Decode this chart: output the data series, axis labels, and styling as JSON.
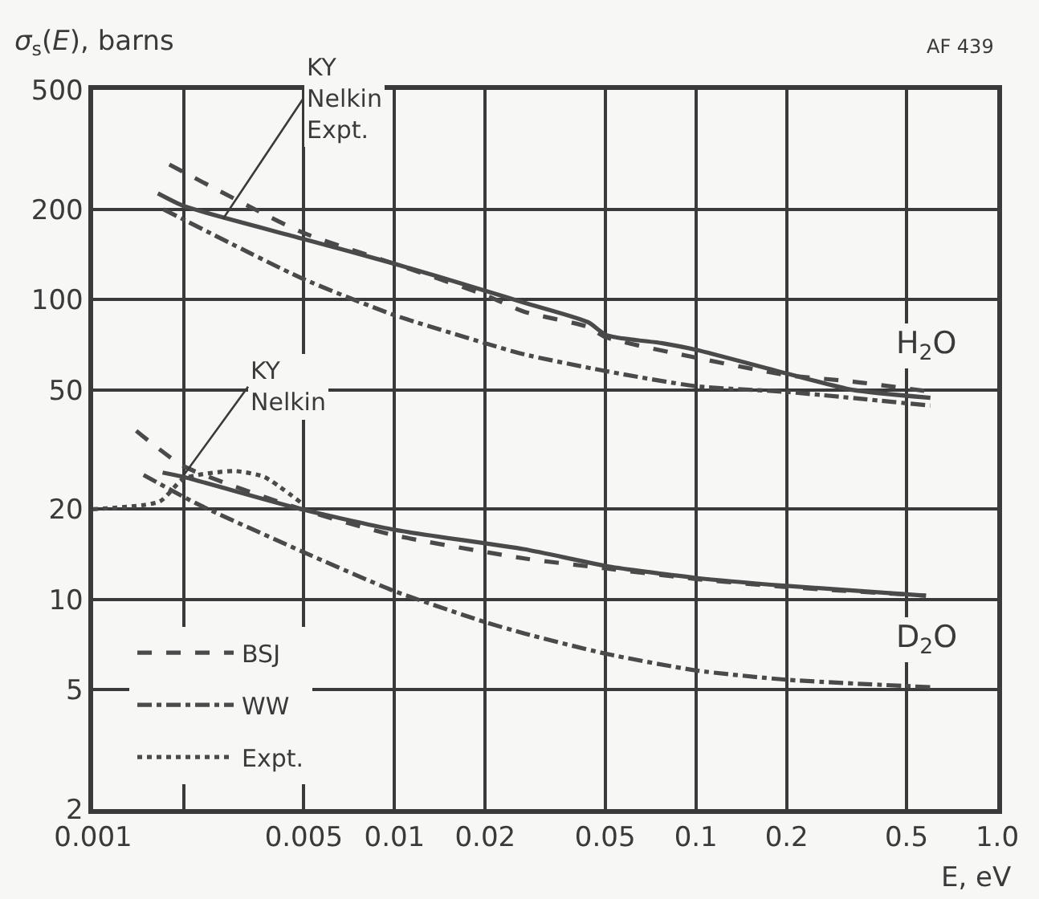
{
  "chart_data": {
    "type": "line",
    "xlabel": "E, eV",
    "ylabel": "σ$_{s}$(E), barns",
    "log": "xy",
    "grid": true,
    "legend": "bottom left",
    "marker": "none",
    "xlim": [
      0.001,
      1.0
    ],
    "ylim": [
      2,
      500
    ],
    "xticks": [
      0.001,
      {
        "value": 0.002,
        "label": null
      },
      0.005,
      0.01,
      0.02,
      0.05,
      0.1,
      0.2,
      0.5,
      {
        "value": 1.0,
        "label": "1.0"
      }
    ],
    "yticks": [
      2,
      5,
      10,
      20,
      50,
      100,
      200,
      500
    ],
    "series": [
      {
        "color": "#4a4a4a",
        "line_style": "solid",
        "x": [
          0.00164,
          0.002,
          0.0049,
          0.0099,
          0.02,
          0.027,
          0.0439,
          0.0506,
          0.0775,
          0.1,
          0.2,
          0.33,
          0.6
        ],
        "values": [
          226,
          205,
          160,
          132,
          107,
          97.5,
          84,
          76,
          71.5,
          68,
          56.7,
          50,
          47
        ]
      },
      {
        "name": "BSJ",
        "color": "#4a4a4a",
        "line_style": "dashed",
        "x": [
          0.00179,
          0.0049,
          0.0099,
          0.02,
          0.027,
          0.044,
          0.05,
          0.1,
          0.2,
          0.33,
          0.6
        ],
        "values": [
          282,
          168,
          132,
          103.5,
          91,
          81,
          75,
          64,
          56,
          53.3,
          49.3
        ]
      },
      {
        "name": "WW",
        "color": "#4a4a4a",
        "line_style": "dashdot",
        "x": [
          0.00171,
          0.0049,
          0.0099,
          0.02,
          0.027,
          0.049,
          0.1,
          0.2,
          0.6
        ],
        "values": [
          200,
          118,
          89,
          71.5,
          65.6,
          58,
          51.4,
          49.2,
          44.3
        ]
      },
      {
        "color": "#4a4a4a",
        "line_style": "solid",
        "x": [
          0.0017,
          0.002,
          0.0049,
          0.0099,
          0.027,
          0.051,
          0.1,
          0.2,
          0.58
        ],
        "values": [
          26.5,
          25.6,
          20,
          17.1,
          14.7,
          12.9,
          11.8,
          11.1,
          10.3
        ]
      },
      {
        "color": "#4a4a4a",
        "line_style": "dashed",
        "x": [
          0.00139,
          0.002,
          0.0049,
          0.0099,
          0.027,
          0.05,
          0.1,
          0.2,
          0.58
        ],
        "values": [
          36.5,
          27.8,
          20,
          16.4,
          13.7,
          12.7,
          11.7,
          11.0,
          10.3
        ]
      },
      {
        "color": "#4a4a4a",
        "line_style": "dashdot",
        "x": [
          0.00147,
          0.0022,
          0.0049,
          0.0099,
          0.02,
          0.027,
          0.05,
          0.1,
          0.2,
          0.6
        ],
        "values": [
          26,
          20.9,
          14.5,
          10.7,
          8.4,
          7.7,
          6.6,
          5.8,
          5.4,
          5.1
        ]
      },
      {
        "name": "Expt.",
        "color": "#4a4a4a",
        "line_style": "dotted",
        "x": [
          0.001,
          0.00166,
          0.002,
          0.00294,
          0.0037,
          0.0049
        ],
        "values": [
          20,
          21.2,
          25.3,
          26.8,
          25.6,
          21
        ]
      }
    ],
    "annotations": [
      {
        "text": "KY\nNelkin\nExpt.",
        "x": 0.0027,
        "y": 186
      },
      {
        "text": "KY\nNelkin",
        "x": 0.002,
        "y": 26
      },
      "H$_{2}$O",
      "D$_{2}$O",
      "AF 439"
    ]
  }
}
